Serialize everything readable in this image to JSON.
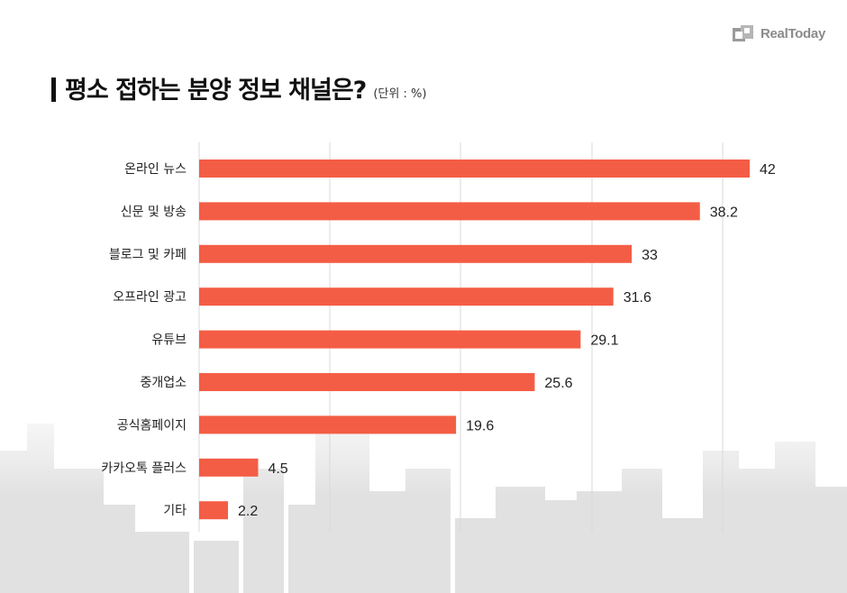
{
  "brand": {
    "name": "RealToday"
  },
  "header": {
    "title": "평소 접하는 분양 정보 채널은?",
    "unit": "(단위 : %)"
  },
  "colors": {
    "bar": "#f45d45",
    "grid": "#d9d9d9",
    "text": "#222222"
  },
  "chart_data": {
    "type": "bar",
    "orientation": "horizontal",
    "categories": [
      "온라인 뉴스",
      "신문 및 방송",
      "블로그 및 카페",
      "오프라인 광고",
      "유튜브",
      "중개업소",
      "공식홈페이지",
      "카카오톡 플러스",
      "기타"
    ],
    "values": [
      42,
      38.2,
      33,
      31.6,
      29.1,
      25.6,
      19.6,
      4.5,
      2.2
    ],
    "value_labels": [
      "42",
      "38.2",
      "33",
      "31.6",
      "29.1",
      "25.6",
      "19.6",
      "4.5",
      "2.2"
    ],
    "title": "평소 접하는 분양 정보 채널은?",
    "unit": "%",
    "xlim": [
      0,
      42
    ],
    "grid": true,
    "legend": "none"
  }
}
